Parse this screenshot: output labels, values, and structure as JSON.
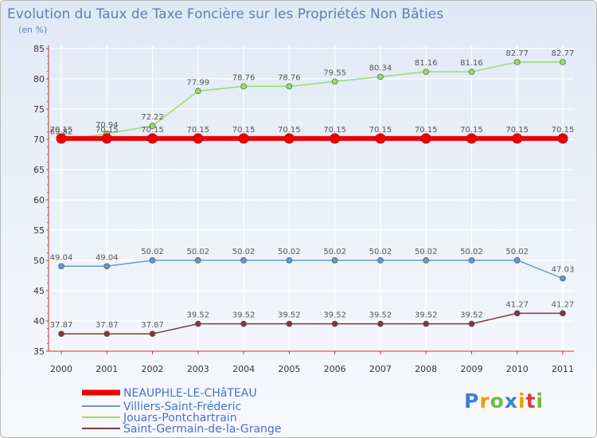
{
  "chart_data": {
    "type": "line",
    "title": "Evolution du Taux de Taxe Foncière sur les Propriétés Non Bâties",
    "subtitle": "(en %)",
    "xlabel": "",
    "ylabel": "",
    "ylim": [
      35,
      85
    ],
    "yticks": [
      35,
      40,
      45,
      50,
      55,
      60,
      65,
      70,
      75,
      80,
      85
    ],
    "grid": true,
    "legend_position": "bottom-left",
    "categories": [
      "2000",
      "2001",
      "2002",
      "2003",
      "2004",
      "2005",
      "2006",
      "2007",
      "2008",
      "2009",
      "2010",
      "2011"
    ],
    "series": [
      {
        "name": "NEAUPHLE-LE-CHâTEAU",
        "color": "#ee0000",
        "values": [
          70.15,
          70.15,
          70.15,
          70.15,
          70.15,
          70.15,
          70.15,
          70.15,
          70.15,
          70.15,
          70.15,
          70.15
        ],
        "labels": [
          "70.15",
          "70.15",
          "70.15",
          "70.15",
          "70.15",
          "70.15",
          "70.15",
          "70.15",
          "70.15",
          "70.15",
          "70.15",
          "70.15"
        ]
      },
      {
        "name": "Villiers-Saint-Fréderic",
        "color": "#6699cc",
        "values": [
          49.04,
          49.04,
          50.02,
          50.02,
          50.02,
          50.02,
          50.02,
          50.02,
          50.02,
          50.02,
          50.02,
          47.03
        ],
        "labels": [
          "49.04",
          "49.04",
          "50.02",
          "50.02",
          "50.02",
          "50.02",
          "50.02",
          "50.02",
          "50.02",
          "50.02",
          "50.02",
          "47.03"
        ]
      },
      {
        "name": "Jouars-Pontchartrain",
        "color": "#99dd66",
        "values": [
          69.82,
          70.94,
          72.22,
          77.99,
          78.76,
          78.76,
          79.55,
          80.34,
          81.16,
          81.16,
          82.77,
          82.77
        ],
        "labels": [
          "69.82",
          "70.94",
          "72.22",
          "77.99",
          "78.76",
          "78.76",
          "79.55",
          "80.34",
          "81.16",
          "81.16",
          "82.77",
          "82.77"
        ]
      },
      {
        "name": "Saint-Germain-de-la-Grange",
        "color": "#7a3b3b",
        "values": [
          37.87,
          37.87,
          37.87,
          39.52,
          39.52,
          39.52,
          39.52,
          39.52,
          39.52,
          39.52,
          41.27,
          41.27
        ],
        "labels": [
          "37.87",
          "37.87",
          "37.87",
          "39.52",
          "39.52",
          "39.52",
          "39.52",
          "39.52",
          "39.52",
          "39.52",
          "41.27",
          "41.27"
        ]
      }
    ]
  },
  "logo": {
    "letters": [
      "P",
      "r",
      "o",
      "x",
      "i",
      "t",
      "i"
    ],
    "colors": [
      "#3a7fd5",
      "#ff9900",
      "#6cbf3a",
      "#3a7fd5",
      "#ff9900",
      "#e23a3a",
      "#6cbf3a"
    ]
  }
}
